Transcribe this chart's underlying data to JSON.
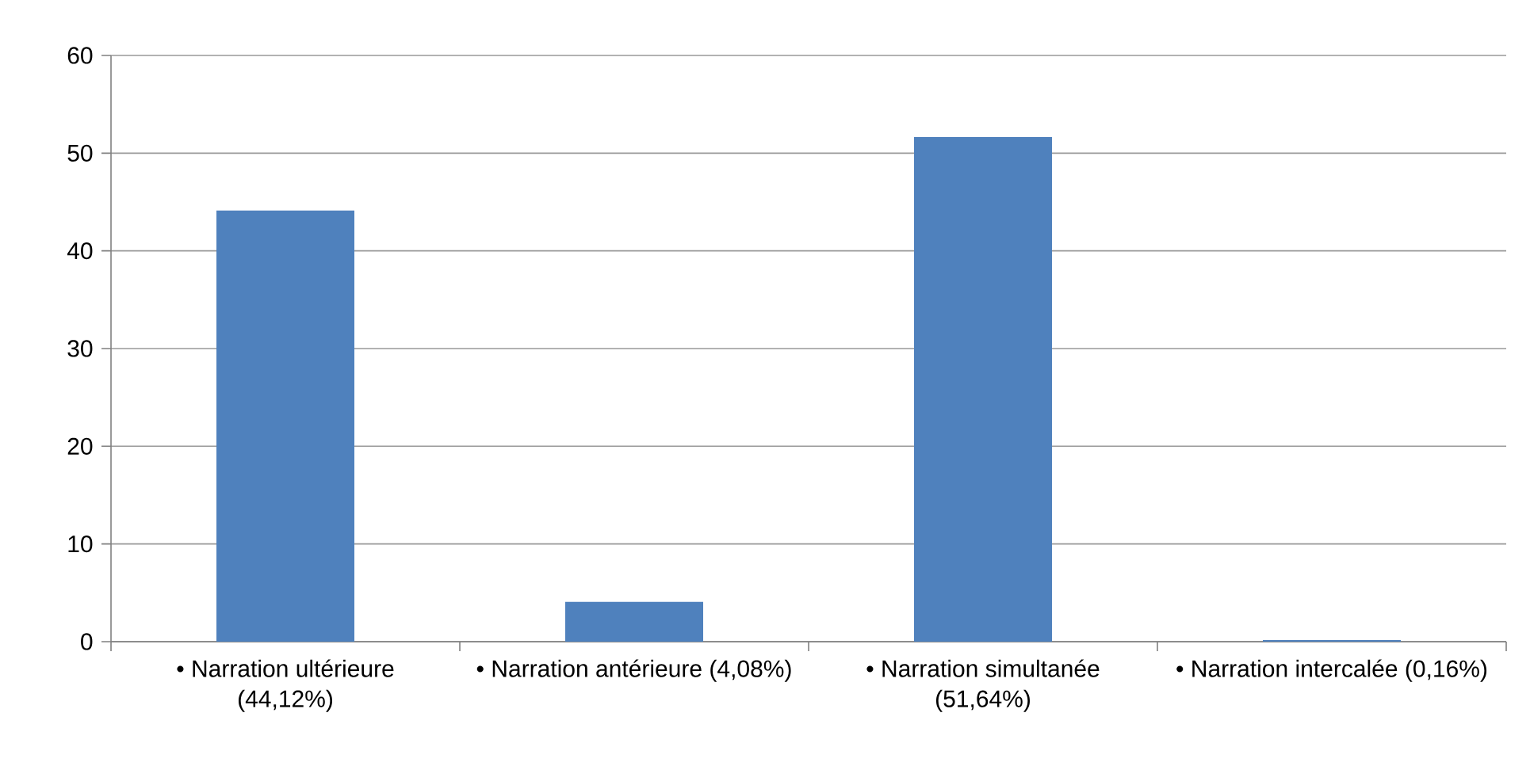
{
  "chart_data": {
    "type": "bar",
    "categories": [
      "• Narration ultérieure (44,12%)",
      "• Narration antérieure (4,08%)",
      "• Narration simultanée (51,64%)",
      "• Narration intercalée (0,16%)"
    ],
    "values": [
      44.12,
      4.08,
      51.64,
      0.16
    ],
    "color": "#4f81bd",
    "ylim": [
      0,
      60
    ],
    "yticks": [
      0,
      10,
      20,
      30,
      40,
      50,
      60
    ],
    "grid": "y"
  }
}
